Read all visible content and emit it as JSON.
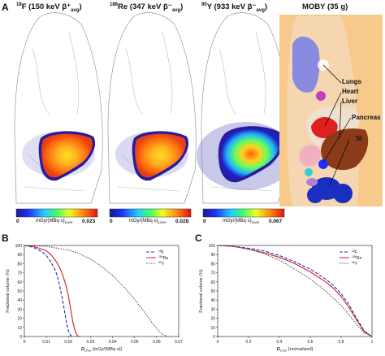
{
  "panel_a": {
    "letter": "A",
    "images": [
      {
        "title_sup": "18",
        "title_main": "F (150 keV β⁺",
        "title_sub": "avg",
        "title_end": ")",
        "colorbar_min": "0",
        "colorbar_label": "mGy/(MBq·s)",
        "colorbar_label_sub": "Liver",
        "colorbar_max": "0.023"
      },
      {
        "title_sup": "186",
        "title_main": "Re (347 keV β⁻",
        "title_sub": "avg",
        "title_end": ")",
        "colorbar_min": "0",
        "colorbar_label": "mGy/(MBq·s)",
        "colorbar_label_sub": "Liver",
        "colorbar_max": "0.028"
      },
      {
        "title_sup": "90",
        "title_main": "Y (933 keV β⁻",
        "title_sub": "avg",
        "title_end": ")",
        "colorbar_min": "0",
        "colorbar_label": "mGy/(MBq·s)",
        "colorbar_label_sub": "Liver",
        "colorbar_max": "0.067"
      }
    ],
    "moby": {
      "title": "MOBY (35 g)",
      "labels": [
        "Lungs",
        "Heart",
        "Liver",
        "Pancreas",
        "SI"
      ]
    }
  },
  "chart_data": [
    {
      "type": "line",
      "panel": "B",
      "xlabel_main": "D",
      "xlabel_sub": "Liver",
      "xlabel_unit": " [mGy/(MBq·s)]",
      "ylabel": "Fractional volume (%)",
      "xlim": [
        0,
        0.07
      ],
      "ylim": [
        0,
        100
      ],
      "xticks": [
        "0",
        "0.01",
        "0.02",
        "0.03",
        "0.04",
        "0.05",
        "0.06",
        "0.07"
      ],
      "yticks": [
        "0",
        "10",
        "20",
        "30",
        "40",
        "50",
        "60",
        "70",
        "80",
        "90",
        "100"
      ],
      "legend_position": "top-right",
      "series": [
        {
          "name_sup": "18",
          "name": "F",
          "color": "#1a2fbf",
          "dash": "4,2",
          "x": [
            0,
            0.004,
            0.008,
            0.01,
            0.012,
            0.014,
            0.015,
            0.016,
            0.017,
            0.018,
            0.019,
            0.02,
            0.021,
            0.022
          ],
          "y": [
            100,
            98,
            93,
            89,
            82,
            73,
            66,
            56,
            44,
            31,
            17,
            6,
            1,
            0
          ]
        },
        {
          "name_sup": "186",
          "name": "Re",
          "color": "#d42020",
          "dash": "",
          "x": [
            0,
            0.004,
            0.008,
            0.01,
            0.012,
            0.014,
            0.016,
            0.017,
            0.018,
            0.019,
            0.02,
            0.021,
            0.022,
            0.023,
            0.024,
            0.025
          ],
          "y": [
            100,
            99,
            96,
            94,
            90,
            84,
            76,
            70,
            63,
            55,
            44,
            30,
            16,
            6,
            1,
            0
          ]
        },
        {
          "name_sup": "90",
          "name": "Y",
          "color": "#555555",
          "dash": "1.5,1.5",
          "x": [
            0,
            0.01,
            0.02,
            0.025,
            0.03,
            0.035,
            0.04,
            0.045,
            0.05,
            0.055,
            0.058,
            0.061,
            0.063,
            0.065
          ],
          "y": [
            100,
            99,
            95,
            91,
            85,
            77,
            67,
            55,
            41,
            25,
            15,
            6,
            2,
            0
          ]
        }
      ]
    },
    {
      "type": "line",
      "panel": "C",
      "xlabel_main": "D",
      "xlabel_sub": "Liver",
      "xlabel_unit": " [normalized]",
      "ylabel": "Fractional volume (%)",
      "xlim": [
        0,
        1
      ],
      "ylim": [
        0,
        100
      ],
      "xticks": [
        "0",
        "0.2",
        "0.4",
        "0.6",
        "0.8",
        "1"
      ],
      "yticks": [
        "0",
        "10",
        "20",
        "30",
        "40",
        "50",
        "60",
        "70",
        "80",
        "90",
        "100"
      ],
      "legend_position": "top-right",
      "series": [
        {
          "name_sup": "18",
          "name": "F",
          "color": "#1a2fbf",
          "dash": "4,2",
          "x": [
            0,
            0.1,
            0.2,
            0.3,
            0.4,
            0.5,
            0.6,
            0.7,
            0.75,
            0.8,
            0.85,
            0.9,
            0.95,
            1.0
          ],
          "y": [
            100,
            99,
            97,
            94,
            89,
            82,
            74,
            63,
            56,
            47,
            35,
            20,
            6,
            0
          ]
        },
        {
          "name_sup": "186",
          "name": "Re",
          "color": "#d42020",
          "dash": "",
          "x": [
            0,
            0.1,
            0.2,
            0.3,
            0.4,
            0.5,
            0.6,
            0.7,
            0.75,
            0.8,
            0.85,
            0.9,
            0.95,
            1.0
          ],
          "y": [
            100,
            99,
            96,
            92,
            87,
            80,
            71,
            60,
            53,
            44,
            32,
            18,
            5,
            0
          ]
        },
        {
          "name_sup": "90",
          "name": "Y",
          "color": "#555555",
          "dash": "1.5,1.5",
          "x": [
            0,
            0.1,
            0.2,
            0.3,
            0.4,
            0.5,
            0.6,
            0.7,
            0.75,
            0.8,
            0.85,
            0.9,
            0.95,
            1.0
          ],
          "y": [
            100,
            99,
            96,
            91,
            84,
            74,
            63,
            50,
            42,
            34,
            24,
            13,
            4,
            0
          ]
        }
      ]
    }
  ]
}
